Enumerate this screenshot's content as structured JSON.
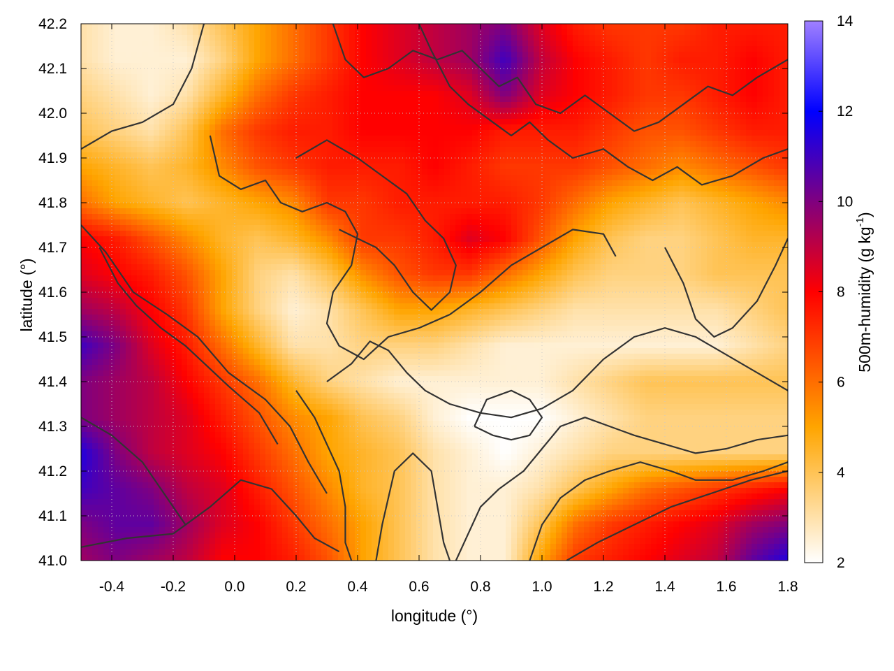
{
  "chart_data": {
    "type": "heatmap",
    "title": "",
    "xlabel": "longitude (°)",
    "ylabel": "latitude (°)",
    "colorbar_label": "500m-humidity (g kg⁻¹)",
    "colorbar_label_main": "500m-humidity (g kg",
    "colorbar_label_sup": "-1",
    "colorbar_label_end": ")",
    "xlim": [
      -0.5,
      1.8
    ],
    "ylim": [
      41.0,
      42.2
    ],
    "clim": [
      2,
      14
    ],
    "x_ticks": [
      -0.4,
      -0.2,
      0.0,
      0.2,
      0.4,
      0.6,
      0.8,
      1.0,
      1.2,
      1.4,
      1.6,
      1.8
    ],
    "x_tick_labels": [
      "-0.4",
      "-0.2",
      "0.0",
      "0.2",
      "0.4",
      "0.6",
      "0.8",
      "1.0",
      "1.2",
      "1.4",
      "1.6",
      "1.8"
    ],
    "y_ticks": [
      41.0,
      41.1,
      41.2,
      41.3,
      41.4,
      41.5,
      41.6,
      41.7,
      41.8,
      41.9,
      42.0,
      42.1,
      42.2
    ],
    "y_tick_labels": [
      "41.0",
      "41.1",
      "41.2",
      "41.3",
      "41.4",
      "41.5",
      "41.6",
      "41.7",
      "41.8",
      "41.9",
      "42.0",
      "42.1",
      "42.2"
    ],
    "cbar_ticks": [
      2,
      4,
      6,
      8,
      10,
      12,
      14
    ],
    "cbar_tick_labels": [
      "2",
      "4",
      "6",
      "8",
      "10",
      "12",
      "14"
    ],
    "grid": true,
    "colormap": [
      "#ffffff",
      "#ffa500",
      "#ff0000",
      "#0000ff",
      "#a080ff"
    ],
    "colormap_stops": [
      2,
      5,
      8,
      12,
      14
    ],
    "contour_color": "#333333",
    "field_humidity": {
      "description_units": "g kg-1",
      "lon": [
        -0.5,
        -0.385,
        -0.27,
        -0.155,
        -0.04,
        0.075,
        0.19,
        0.305,
        0.42,
        0.535,
        0.65,
        0.765,
        0.88,
        0.995,
        1.11,
        1.225,
        1.34,
        1.455,
        1.57,
        1.685,
        1.8
      ],
      "lat": [
        41.0,
        41.08,
        41.16,
        41.24,
        41.32,
        41.4,
        41.48,
        41.56,
        41.64,
        41.72,
        41.8,
        41.88,
        41.96,
        42.04,
        42.12,
        42.2
      ],
      "values": [
        [
          9.5,
          10,
          9.5,
          9,
          8,
          8,
          7.5,
          6.5,
          5,
          4,
          3,
          2.5,
          2.5,
          5,
          7,
          7.5,
          8,
          8.5,
          9,
          10.5,
          11.5
        ],
        [
          10,
          10.5,
          10.5,
          9.5,
          8.5,
          8,
          7,
          6,
          5,
          4,
          3,
          2.5,
          2.5,
          4,
          6,
          7,
          7.5,
          8,
          8.5,
          9.5,
          10
        ],
        [
          11,
          10.5,
          10,
          9,
          8.5,
          7.5,
          6.5,
          5.5,
          4.5,
          4,
          3,
          2.5,
          2.5,
          3,
          4,
          5,
          6,
          6.5,
          7,
          7.5,
          8
        ],
        [
          11.5,
          10,
          9,
          8.5,
          8,
          7,
          6,
          5,
          4.5,
          4,
          3,
          2.5,
          2,
          2.5,
          3,
          3.5,
          3.5,
          3.5,
          3.5,
          3.5,
          3.5
        ],
        [
          10,
          9.5,
          9,
          8.5,
          7.5,
          6.5,
          5.5,
          5,
          4,
          3.5,
          2.5,
          2,
          2,
          2,
          2.5,
          3,
          3.5,
          3.5,
          3.5,
          3.5,
          3.5
        ],
        [
          10,
          9.5,
          9,
          8,
          7,
          6,
          4.5,
          3.5,
          3,
          2.5,
          2.5,
          2.5,
          2.5,
          2.5,
          3,
          3.5,
          4,
          4,
          4,
          4,
          4
        ],
        [
          11,
          10,
          8.5,
          7.5,
          6,
          4.5,
          3,
          3,
          3.5,
          3.5,
          3.5,
          3,
          2.5,
          2.5,
          2.5,
          2.5,
          2.5,
          2.5,
          2.5,
          3,
          3.5
        ],
        [
          9.5,
          9,
          8,
          7,
          5,
          3.5,
          2.5,
          3,
          4,
          5,
          5,
          4.5,
          4,
          3.5,
          3,
          3,
          3,
          3,
          3,
          3.5,
          4
        ],
        [
          8.5,
          8,
          7.5,
          6.5,
          5,
          3.5,
          3,
          4,
          5.5,
          6.5,
          7,
          7,
          6,
          5,
          4,
          3.5,
          3.5,
          3.5,
          4,
          4,
          4
        ],
        [
          8,
          7.5,
          6.5,
          5.5,
          4.5,
          4,
          4.5,
          5.5,
          7,
          7,
          7.5,
          8.5,
          8,
          6.5,
          5,
          4,
          3.5,
          3.5,
          4,
          4.5,
          4.5
        ],
        [
          6,
          5,
          4.5,
          4,
          4.5,
          5,
          5.5,
          7,
          7,
          7.5,
          7.5,
          7.5,
          7.5,
          7,
          6,
          5,
          4.5,
          4,
          4.5,
          5,
          5.5
        ],
        [
          5,
          4.5,
          4,
          4.5,
          5.5,
          6.5,
          7,
          7.5,
          7.5,
          7.5,
          8,
          7.5,
          7,
          7,
          7,
          6.5,
          6,
          5.5,
          6,
          6.5,
          7
        ],
        [
          4,
          3.5,
          3,
          4,
          6,
          7,
          7.5,
          7.5,
          8,
          8,
          8,
          8,
          7.5,
          7.5,
          7.5,
          7,
          6.5,
          6.5,
          7,
          7.5,
          7.5
        ],
        [
          3.5,
          3,
          2.5,
          3,
          4.5,
          6,
          7,
          7.5,
          8,
          8,
          8,
          8.5,
          10,
          8.5,
          8,
          7.5,
          7,
          7,
          7.5,
          8,
          7.5
        ],
        [
          3,
          2.5,
          2.5,
          2.5,
          3.5,
          5,
          6,
          7,
          8,
          8.5,
          9,
          9.5,
          11,
          9,
          8,
          7.5,
          7,
          7.5,
          7.5,
          8,
          7.5
        ],
        [
          3,
          2.5,
          2.5,
          3,
          4,
          5,
          6,
          7,
          8,
          8.5,
          9,
          9.5,
          10,
          8.5,
          7.5,
          7,
          7,
          7,
          7.5,
          7.5,
          7.5
        ]
      ]
    },
    "contours_lonlat": [
      [
        [
          -0.5,
          41.75
        ],
        [
          -0.42,
          41.69
        ],
        [
          -0.33,
          41.6
        ],
        [
          -0.22,
          41.55
        ],
        [
          -0.12,
          41.5
        ],
        [
          -0.02,
          41.42
        ],
        [
          0.1,
          41.36
        ],
        [
          0.18,
          41.3
        ],
        [
          0.24,
          41.22
        ],
        [
          0.3,
          41.15
        ]
      ],
      [
        [
          -0.5,
          41.03
        ],
        [
          -0.35,
          41.05
        ],
        [
          -0.2,
          41.06
        ],
        [
          -0.08,
          41.12
        ],
        [
          0.02,
          41.18
        ],
        [
          0.12,
          41.16
        ],
        [
          0.2,
          41.1
        ],
        [
          0.26,
          41.05
        ],
        [
          0.34,
          41.02
        ]
      ],
      [
        [
          -0.5,
          41.32
        ],
        [
          -0.4,
          41.28
        ],
        [
          -0.3,
          41.22
        ],
        [
          -0.22,
          41.14
        ],
        [
          -0.16,
          41.08
        ]
      ],
      [
        [
          -0.44,
          41.7
        ],
        [
          -0.38,
          41.62
        ],
        [
          -0.32,
          41.57
        ],
        [
          -0.24,
          41.52
        ],
        [
          -0.16,
          41.48
        ],
        [
          -0.02,
          41.39
        ],
        [
          0.08,
          41.33
        ],
        [
          0.14,
          41.26
        ]
      ],
      [
        [
          -0.08,
          41.95
        ],
        [
          -0.05,
          41.86
        ],
        [
          0.02,
          41.83
        ],
        [
          0.1,
          41.85
        ],
        [
          0.15,
          41.8
        ],
        [
          0.22,
          41.78
        ],
        [
          0.3,
          41.8
        ],
        [
          0.36,
          41.78
        ],
        [
          0.4,
          41.73
        ],
        [
          0.38,
          41.66
        ],
        [
          0.32,
          41.6
        ],
        [
          0.3,
          41.53
        ],
        [
          0.34,
          41.48
        ],
        [
          0.42,
          41.45
        ],
        [
          0.5,
          41.5
        ],
        [
          0.6,
          41.52
        ],
        [
          0.7,
          41.55
        ],
        [
          0.8,
          41.6
        ],
        [
          0.9,
          41.66
        ],
        [
          1.0,
          41.7
        ],
        [
          1.1,
          41.74
        ],
        [
          1.2,
          41.73
        ],
        [
          1.24,
          41.68
        ]
      ],
      [
        [
          0.3,
          41.4
        ],
        [
          0.38,
          41.44
        ],
        [
          0.44,
          41.49
        ],
        [
          0.5,
          41.47
        ],
        [
          0.56,
          41.42
        ],
        [
          0.62,
          41.38
        ],
        [
          0.7,
          41.35
        ],
        [
          0.8,
          41.33
        ],
        [
          0.9,
          41.32
        ],
        [
          1.0,
          41.34
        ],
        [
          1.1,
          41.38
        ],
        [
          1.2,
          41.45
        ],
        [
          1.3,
          41.5
        ],
        [
          1.4,
          41.52
        ],
        [
          1.5,
          41.5
        ],
        [
          1.6,
          41.46
        ],
        [
          1.7,
          41.42
        ],
        [
          1.8,
          41.38
        ]
      ],
      [
        [
          0.2,
          41.38
        ],
        [
          0.26,
          41.32
        ],
        [
          0.3,
          41.26
        ],
        [
          0.34,
          41.2
        ],
        [
          0.36,
          41.12
        ],
        [
          0.36,
          41.04
        ],
        [
          0.38,
          41.0
        ]
      ],
      [
        [
          0.46,
          41.0
        ],
        [
          0.48,
          41.08
        ],
        [
          0.5,
          41.14
        ],
        [
          0.52,
          41.2
        ],
        [
          0.58,
          41.24
        ],
        [
          0.64,
          41.2
        ],
        [
          0.66,
          41.12
        ],
        [
          0.68,
          41.04
        ],
        [
          0.7,
          41.0
        ]
      ],
      [
        [
          0.72,
          41.0
        ],
        [
          0.76,
          41.06
        ],
        [
          0.8,
          41.12
        ],
        [
          0.86,
          41.16
        ],
        [
          0.94,
          41.2
        ],
        [
          1.0,
          41.25
        ],
        [
          1.06,
          41.3
        ],
        [
          1.14,
          41.32
        ],
        [
          1.22,
          41.3
        ],
        [
          1.3,
          41.28
        ],
        [
          1.4,
          41.26
        ],
        [
          1.5,
          41.24
        ],
        [
          1.6,
          41.25
        ],
        [
          1.7,
          41.27
        ],
        [
          1.8,
          41.28
        ]
      ],
      [
        [
          0.96,
          41.0
        ],
        [
          1.0,
          41.08
        ],
        [
          1.06,
          41.14
        ],
        [
          1.14,
          41.18
        ],
        [
          1.22,
          41.2
        ],
        [
          1.32,
          41.22
        ],
        [
          1.42,
          41.2
        ],
        [
          1.5,
          41.18
        ],
        [
          1.62,
          41.18
        ],
        [
          1.72,
          41.2
        ],
        [
          1.8,
          41.22
        ]
      ],
      [
        [
          1.08,
          41.0
        ],
        [
          1.18,
          41.04
        ],
        [
          1.3,
          41.08
        ],
        [
          1.42,
          41.12
        ],
        [
          1.55,
          41.15
        ],
        [
          1.68,
          41.18
        ],
        [
          1.8,
          41.2
        ]
      ],
      [
        [
          0.78,
          41.3
        ],
        [
          0.82,
          41.36
        ],
        [
          0.9,
          41.38
        ],
        [
          0.96,
          41.36
        ],
        [
          1.0,
          41.32
        ],
        [
          0.96,
          41.28
        ],
        [
          0.9,
          41.27
        ],
        [
          0.84,
          41.28
        ],
        [
          0.78,
          41.3
        ]
      ],
      [
        [
          0.32,
          42.2
        ],
        [
          0.36,
          42.12
        ],
        [
          0.42,
          42.08
        ],
        [
          0.5,
          42.1
        ],
        [
          0.58,
          42.14
        ],
        [
          0.66,
          42.12
        ],
        [
          0.74,
          42.14
        ],
        [
          0.8,
          42.1
        ],
        [
          0.86,
          42.06
        ],
        [
          0.92,
          42.08
        ],
        [
          0.98,
          42.02
        ],
        [
          1.06,
          42.0
        ],
        [
          1.14,
          42.04
        ],
        [
          1.22,
          42.0
        ],
        [
          1.3,
          41.96
        ],
        [
          1.38,
          41.98
        ],
        [
          1.46,
          42.02
        ],
        [
          1.54,
          42.06
        ],
        [
          1.62,
          42.04
        ],
        [
          1.7,
          42.08
        ],
        [
          1.8,
          42.12
        ]
      ],
      [
        [
          0.6,
          42.2
        ],
        [
          0.64,
          42.14
        ],
        [
          0.7,
          42.06
        ],
        [
          0.76,
          42.02
        ],
        [
          0.84,
          41.98
        ],
        [
          0.9,
          41.95
        ],
        [
          0.96,
          41.98
        ],
        [
          1.02,
          41.94
        ],
        [
          1.1,
          41.9
        ],
        [
          1.2,
          41.92
        ],
        [
          1.28,
          41.88
        ],
        [
          1.36,
          41.85
        ],
        [
          1.44,
          41.88
        ],
        [
          1.52,
          41.84
        ],
        [
          1.62,
          41.86
        ],
        [
          1.72,
          41.9
        ],
        [
          1.8,
          41.92
        ]
      ],
      [
        [
          0.2,
          41.9
        ],
        [
          0.3,
          41.94
        ],
        [
          0.4,
          41.9
        ],
        [
          0.48,
          41.86
        ],
        [
          0.56,
          41.82
        ],
        [
          0.62,
          41.76
        ],
        [
          0.68,
          41.72
        ],
        [
          0.72,
          41.66
        ],
        [
          0.7,
          41.6
        ],
        [
          0.64,
          41.56
        ],
        [
          0.58,
          41.6
        ],
        [
          0.52,
          41.66
        ],
        [
          0.46,
          41.7
        ],
        [
          0.4,
          41.72
        ],
        [
          0.34,
          41.74
        ]
      ],
      [
        [
          -0.1,
          42.2
        ],
        [
          -0.14,
          42.1
        ],
        [
          -0.2,
          42.02
        ],
        [
          -0.3,
          41.98
        ],
        [
          -0.4,
          41.96
        ],
        [
          -0.5,
          41.92
        ]
      ],
      [
        [
          1.4,
          41.7
        ],
        [
          1.46,
          41.62
        ],
        [
          1.5,
          41.54
        ],
        [
          1.56,
          41.5
        ],
        [
          1.62,
          41.52
        ],
        [
          1.7,
          41.58
        ],
        [
          1.76,
          41.66
        ],
        [
          1.8,
          41.72
        ]
      ]
    ]
  }
}
